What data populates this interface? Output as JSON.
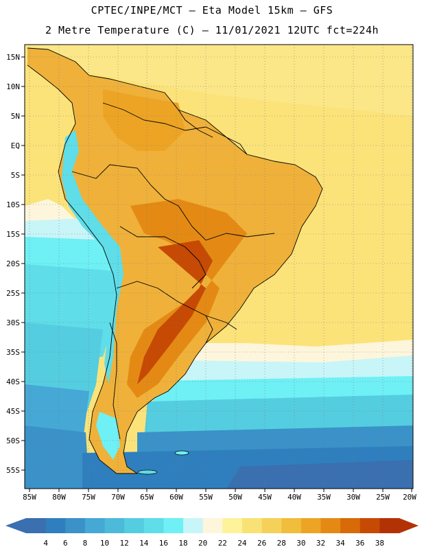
{
  "header": {
    "line1": "CPTEC/INPE/MCT –  Eta Model 15km – GFS",
    "line2": "2 Metre Temperature (C) – 11/01/2021 12UTC fct=224h"
  },
  "map": {
    "lat_labels": [
      "15N",
      "10N",
      "5N",
      "EQ",
      "5S",
      "10S",
      "15S",
      "20S",
      "25S",
      "30S",
      "35S",
      "40S",
      "45S",
      "50S",
      "55S"
    ],
    "lon_labels": [
      "85W",
      "80W",
      "75W",
      "70W",
      "65W",
      "60W",
      "55W",
      "50W",
      "45W",
      "40W",
      "35W",
      "30W",
      "25W",
      "20W"
    ]
  },
  "colorbar": {
    "ticks": [
      "4",
      "6",
      "8",
      "10",
      "12",
      "14",
      "16",
      "18",
      "20",
      "22",
      "24",
      "26",
      "28",
      "30",
      "32",
      "34",
      "36",
      "38"
    ],
    "colors": [
      "#3a6fb0",
      "#2f7fbe",
      "#3a92c8",
      "#45a8d5",
      "#4dbad9",
      "#55cde0",
      "#5fdde8",
      "#6ef0f5",
      "#c8f5f8",
      "#fdf6dc",
      "#fef29a",
      "#f9e275",
      "#f5d15a",
      "#f0bd3c",
      "#eda424",
      "#e48a14",
      "#d86a08",
      "#c64a04",
      "#b33205"
    ],
    "left_arrow_color": "#3a6fb0",
    "right_arrow_color": "#b33205"
  }
}
